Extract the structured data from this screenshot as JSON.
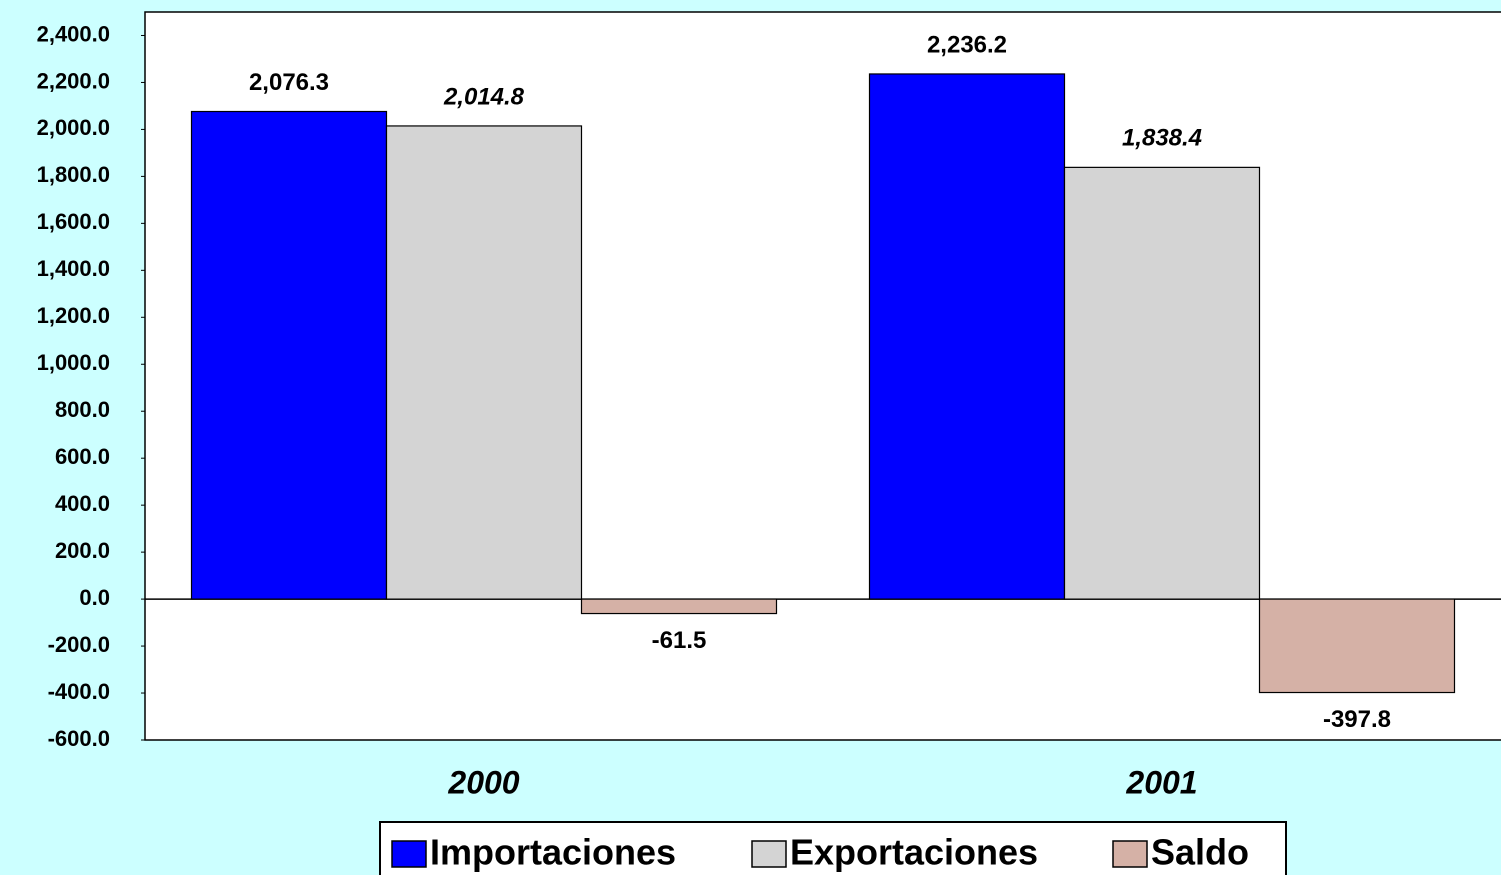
{
  "chart_data": {
    "type": "bar",
    "categories": [
      "2000",
      "2001"
    ],
    "series": [
      {
        "name": "Importaciones",
        "color": "#0000ff",
        "values": [
          2076.3,
          2236.2
        ],
        "value_labels": [
          "2,076.3",
          "2,236.2"
        ]
      },
      {
        "name": "Exportaciones",
        "color": "#d4d4d4",
        "values": [
          2014.8,
          1838.4
        ],
        "value_labels": [
          "2,014.8",
          "1,838.4"
        ]
      },
      {
        "name": "Saldo",
        "color": "#d5b1a6",
        "values": [
          -61.5,
          -397.8
        ],
        "value_labels": [
          "-61.5",
          "-397.8"
        ]
      }
    ],
    "ylim": [
      -600,
      2500
    ],
    "yticks": [
      {
        "value": -600,
        "label": "-600.0"
      },
      {
        "value": -400,
        "label": "-400.0"
      },
      {
        "value": -200,
        "label": "-200.0"
      },
      {
        "value": 0,
        "label": "0.0"
      },
      {
        "value": 200,
        "label": "200.0"
      },
      {
        "value": 400,
        "label": "400.0"
      },
      {
        "value": 600,
        "label": "600.0"
      },
      {
        "value": 800,
        "label": "800.0"
      },
      {
        "value": 1000,
        "label": "1,000.0"
      },
      {
        "value": 1200,
        "label": "1,200.0"
      },
      {
        "value": 1400,
        "label": "1,400.0"
      },
      {
        "value": 1600,
        "label": "1,600.0"
      },
      {
        "value": 1800,
        "label": "1,800.0"
      },
      {
        "value": 2000,
        "label": "2,000.0"
      },
      {
        "value": 2200,
        "label": "2,200.0"
      },
      {
        "value": 2400,
        "label": "2,400.0"
      }
    ],
    "grid": false
  }
}
